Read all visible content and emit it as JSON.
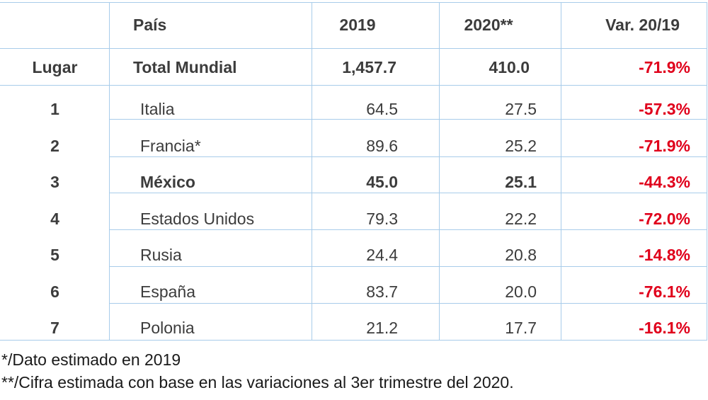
{
  "header": {
    "pais": "País",
    "y2019": "2019",
    "y2020": "2020**",
    "variation": "Var. 20/19"
  },
  "lugar_label": "Lugar",
  "total": {
    "name": "Total Mundial",
    "v2019": "1,457.7",
    "v2020": "410.0",
    "var": "-71.9%"
  },
  "rows": [
    {
      "rank": "1",
      "country": "Italia",
      "v2019": "64.5",
      "v2020": "27.5",
      "var": "-57.3%"
    },
    {
      "rank": "2",
      "country": "Francia*",
      "v2019": "89.6",
      "v2020": "25.2",
      "var": "-71.9%"
    },
    {
      "rank": "3",
      "country": "México",
      "v2019": "45.0",
      "v2020": "25.1",
      "var": "-44.3%"
    },
    {
      "rank": "4",
      "country": "Estados Unidos",
      "v2019": "79.3",
      "v2020": "22.2",
      "var": "-72.0%"
    },
    {
      "rank": "5",
      "country": "Rusia",
      "v2019": "24.4",
      "v2020": "20.8",
      "var": "-14.8%"
    },
    {
      "rank": "6",
      "country": "España",
      "v2019": "83.7",
      "v2020": "20.0",
      "var": "-76.1%"
    },
    {
      "rank": "7",
      "country": "Polonia",
      "v2019": "21.2",
      "v2020": "17.7",
      "var": "-16.1%"
    }
  ],
  "notes": {
    "note1": "*/Dato estimado en 2019",
    "note2": "**/Cifra estimada con base en las variaciones al 3er trimestre del 2020."
  },
  "colors": {
    "grid": "#a8ccea",
    "negative": "#e0001b",
    "text": "#3c3c3c"
  }
}
